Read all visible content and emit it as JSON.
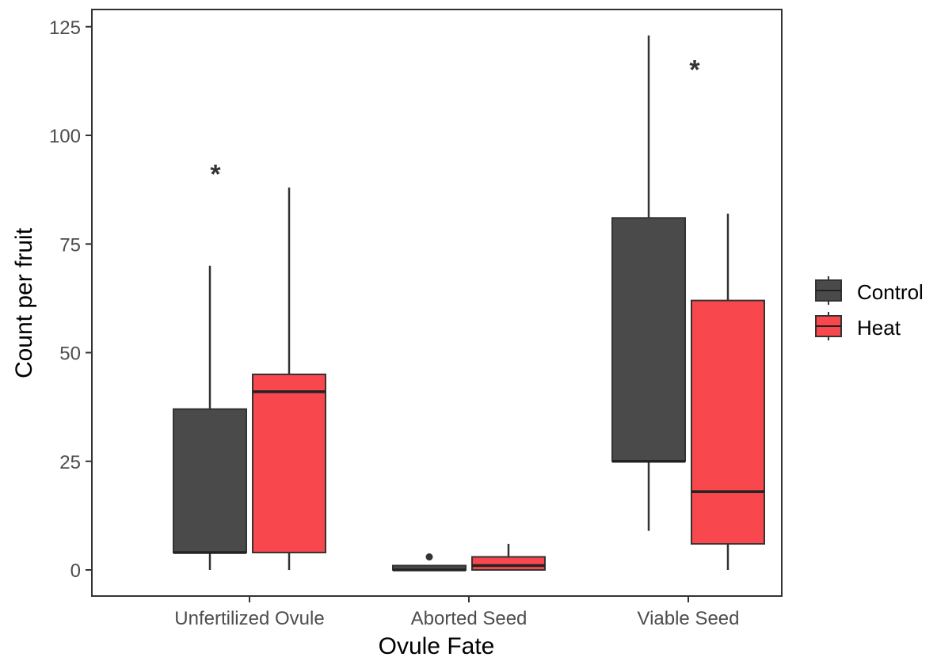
{
  "chart_data": {
    "type": "boxplot",
    "xlabel": "Ovule Fate",
    "ylabel": "Count per fruit",
    "ylim": [
      -6,
      129
    ],
    "yticks": [
      0,
      25,
      50,
      75,
      100,
      125
    ],
    "ytick_labels": [
      "0",
      "25",
      "50",
      "75",
      "100",
      "125"
    ],
    "categories": [
      "Unfertilized Ovule",
      "Aborted Seed",
      "Viable Seed"
    ],
    "grid": false,
    "legend_position": "right",
    "series": [
      {
        "name": "Control",
        "color": "#4a4a4a",
        "boxes": [
          {
            "min": 0,
            "q1": 4,
            "median": 4,
            "q3": 37,
            "max": 70,
            "outliers": []
          },
          {
            "min": 0,
            "q1": 0,
            "median": 0,
            "q3": 1,
            "max": 1,
            "outliers": [
              3
            ]
          },
          {
            "min": 9,
            "q1": 25,
            "median": 25,
            "q3": 81,
            "max": 123,
            "outliers": []
          }
        ]
      },
      {
        "name": "Heat",
        "color": "#f8484d",
        "boxes": [
          {
            "min": 0,
            "q1": 4,
            "median": 41,
            "q3": 45,
            "max": 88,
            "outliers": []
          },
          {
            "min": 0,
            "q1": 0,
            "median": 1,
            "q3": 3,
            "max": 6,
            "outliers": []
          },
          {
            "min": 0,
            "q1": 6,
            "median": 18,
            "q3": 62,
            "max": 82,
            "outliers": []
          }
        ]
      }
    ],
    "annotations": [
      {
        "text": "*",
        "category": "Unfertilized Ovule",
        "y": 93
      },
      {
        "text": "*",
        "category": "Viable Seed",
        "y": 117
      }
    ]
  }
}
